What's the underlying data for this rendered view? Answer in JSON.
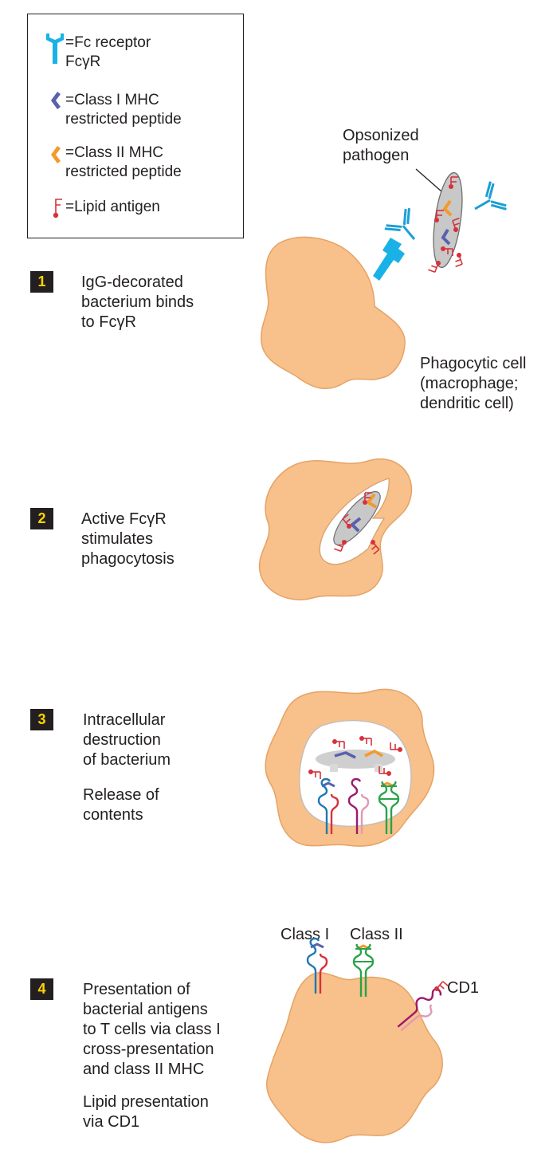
{
  "legend": {
    "items": [
      {
        "icon": "fc-receptor-icon",
        "text": "=Fc receptor\n FcγR"
      },
      {
        "icon": "class-i-peptide-icon",
        "text": "=Class I MHC\n restricted peptide"
      },
      {
        "icon": "class-ii-peptide-icon",
        "text": "=Class II MHC\n restricted peptide"
      },
      {
        "icon": "lipid-antigen-icon",
        "text": "=Lipid antigen"
      }
    ]
  },
  "steps": [
    {
      "number": "1",
      "text": "IgG-decorated\nbacterium binds\nto FcγR"
    },
    {
      "number": "2",
      "text": "Active FcγR\nstimulates\nphagocytosis"
    },
    {
      "number": "3",
      "text": "Intracellular\ndestruction\nof bacterium",
      "subtext": "Release of\ncontents"
    },
    {
      "number": "4",
      "text": "Presentation of\nbacterial antigens\nto T cells via class I\ncross-presentation\nand class II MHC",
      "subtext": "Lipid presentation\nvia CD1"
    }
  ],
  "labels": {
    "opsonized_pathogen": "Opsonized\npathogen",
    "phagocytic_cell": "Phagocytic cell\n(macrophage;\ndendritic cell)",
    "class_i": "Class I",
    "class_ii": "Class II",
    "cd1": "CD1"
  },
  "colors": {
    "cell_fill": "#f8c08a",
    "cell_stroke": "#e5a365",
    "fc_receptor": "#1ab2e6",
    "antibody": "#1a9fd6",
    "class_i_peptide": "#5961ad",
    "class_ii_peptide": "#f39a2a",
    "lipid": "#d6323a",
    "badge_bg": "#231f20",
    "badge_text": "#ffd400",
    "mhc_blue": "#1f78b4",
    "mhc_red": "#d6323a",
    "mhc_magenta": "#9c1a6c",
    "mhc_pink": "#e09ab5",
    "mhc_green": "#2aa24a"
  }
}
